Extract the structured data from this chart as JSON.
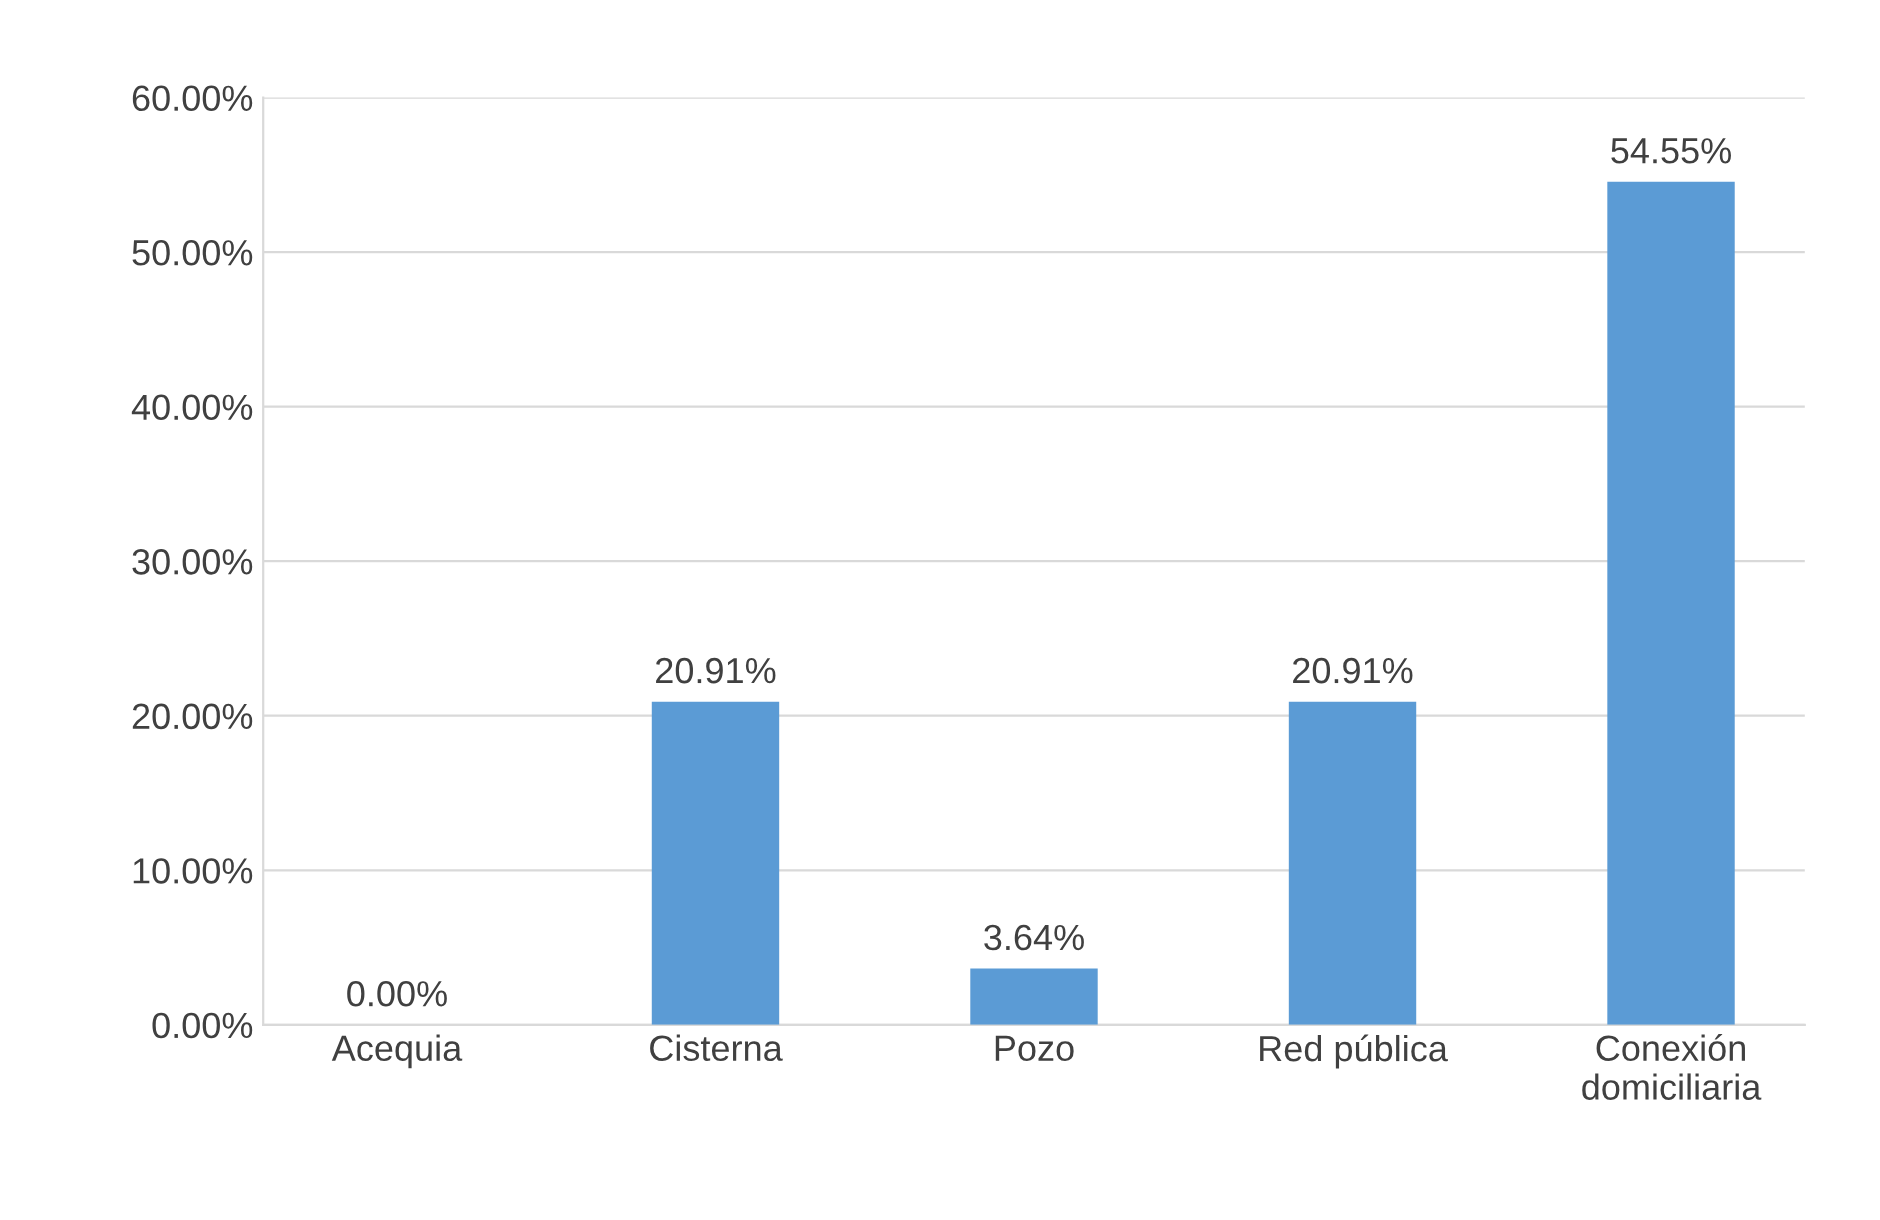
{
  "chart_data": {
    "type": "bar",
    "categories": [
      "Acequia",
      "Cisterna",
      "Pozo",
      "Red pública",
      "Conexión\ndomiciliaria"
    ],
    "values": [
      0,
      20.91,
      3.64,
      20.91,
      54.55
    ],
    "value_labels": [
      "0.00%",
      "20.91%",
      "3.64%",
      "20.91%",
      "54.55%"
    ],
    "color": "#5b9bd5",
    "ylim": [
      0,
      60
    ],
    "yticks": [
      {
        "value": 0,
        "label": "0.00%"
      },
      {
        "value": 10,
        "label": "10.00%"
      },
      {
        "value": 20,
        "label": "20.00%"
      },
      {
        "value": 30,
        "label": "30.00%"
      },
      {
        "value": 40,
        "label": "40.00%"
      },
      {
        "value": 50,
        "label": "50.00%"
      },
      {
        "value": 60,
        "label": "60.00%"
      }
    ],
    "grid": "y"
  }
}
